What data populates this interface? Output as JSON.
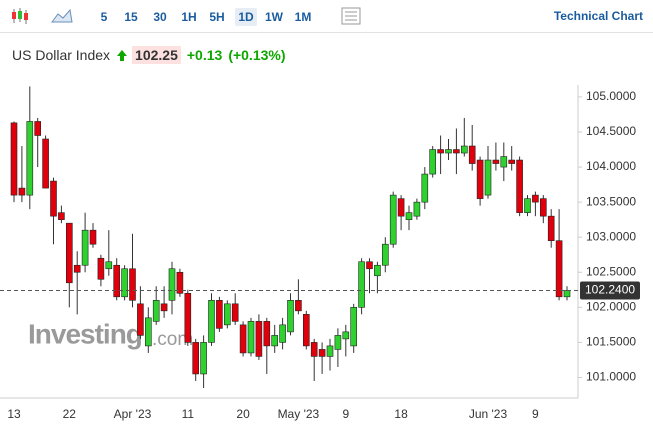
{
  "toolbar": {
    "intervals": [
      "5",
      "15",
      "30",
      "1H",
      "5H",
      "1D",
      "1W",
      "1M"
    ],
    "active_interval": "1D",
    "link": "Technical Chart"
  },
  "quote": {
    "name": "US Dollar Index",
    "price": "102.25",
    "change": "+0.13",
    "change_percent": "(+0.13%)"
  },
  "chart_data": {
    "type": "candlestick",
    "watermark": "Investing",
    "watermark_suffix": ".com",
    "categories": [
      "13",
      null,
      null,
      null,
      null,
      null,
      null,
      "22",
      null,
      null,
      null,
      null,
      null,
      null,
      null,
      "Apr '23",
      null,
      null,
      null,
      null,
      null,
      null,
      "11",
      null,
      null,
      null,
      null,
      null,
      null,
      "20",
      null,
      null,
      null,
      null,
      null,
      null,
      "May '23",
      null,
      null,
      null,
      null,
      null,
      "9",
      null,
      null,
      null,
      null,
      null,
      null,
      "18",
      null,
      null,
      null,
      null,
      null,
      null,
      null,
      null,
      null,
      null,
      "Jun '23",
      null,
      null,
      null,
      null,
      null,
      "9",
      null,
      null,
      null,
      null
    ],
    "open": [
      104.63,
      103.7,
      103.6,
      104.65,
      104.4,
      103.8,
      103.35,
      103.2,
      102.6,
      102.6,
      103.1,
      102.7,
      102.55,
      102.6,
      102.15,
      102.55,
      102.05,
      101.45,
      101.8,
      102.05,
      102.1,
      102.5,
      102.2,
      101.5,
      101.05,
      101.5,
      102.1,
      101.75,
      102.05,
      101.75,
      101.35,
      101.8,
      101.8,
      101.45,
      101.5,
      101.65,
      102.1,
      101.9,
      101.5,
      101.4,
      101.3,
      101.4,
      101.55,
      101.45,
      102.0,
      102.65,
      102.45,
      102.6,
      102.9,
      103.55,
      103.25,
      103.3,
      103.5,
      103.9,
      104.25,
      104.2,
      104.25,
      104.2,
      104.3,
      104.1,
      103.6,
      104.1,
      104.0,
      104.1,
      104.1,
      103.35,
      103.6,
      103.55,
      103.3,
      102.95,
      102.15
    ],
    "high": [
      104.65,
      104.3,
      105.15,
      104.7,
      104.45,
      103.85,
      103.45,
      103.2,
      102.8,
      103.35,
      103.2,
      102.75,
      103.1,
      102.7,
      102.6,
      103.05,
      102.3,
      102.0,
      102.3,
      102.3,
      102.65,
      102.55,
      102.25,
      101.55,
      101.6,
      102.2,
      102.15,
      102.1,
      102.2,
      101.8,
      101.85,
      101.9,
      101.85,
      101.75,
      101.85,
      102.2,
      102.4,
      101.95,
      101.55,
      101.5,
      101.55,
      101.7,
      101.75,
      102.05,
      102.7,
      102.7,
      102.65,
      103.0,
      103.65,
      103.6,
      103.45,
      103.55,
      104.0,
      104.3,
      104.45,
      104.4,
      104.55,
      104.7,
      104.6,
      104.15,
      104.3,
      104.35,
      104.35,
      104.3,
      104.15,
      103.6,
      103.65,
      103.6,
      103.4,
      103.4,
      102.3
    ],
    "low": [
      103.5,
      103.5,
      103.4,
      104.0,
      103.7,
      102.9,
      103.2,
      102.0,
      101.9,
      102.5,
      102.85,
      102.3,
      102.45,
      102.1,
      102.1,
      102.0,
      101.55,
      101.35,
      101.75,
      101.85,
      101.9,
      102.15,
      101.45,
      100.95,
      100.85,
      101.45,
      101.65,
      101.7,
      101.75,
      101.3,
      101.3,
      101.25,
      101.05,
      101.35,
      101.4,
      101.6,
      101.9,
      101.4,
      100.95,
      101.05,
      101.1,
      101.15,
      101.3,
      101.35,
      101.9,
      102.2,
      102.2,
      102.5,
      102.85,
      103.1,
      103.1,
      103.25,
      103.4,
      103.85,
      103.9,
      104.1,
      103.9,
      104.15,
      103.95,
      103.45,
      103.55,
      103.95,
      103.8,
      103.95,
      103.3,
      103.3,
      103.3,
      103.2,
      102.85,
      102.1,
      102.1
    ],
    "close": [
      103.6,
      103.6,
      104.65,
      104.45,
      103.7,
      103.3,
      103.25,
      102.35,
      102.5,
      103.1,
      102.9,
      102.4,
      102.65,
      102.15,
      102.55,
      102.1,
      101.6,
      101.85,
      102.1,
      101.95,
      102.55,
      102.2,
      101.5,
      101.05,
      101.5,
      102.1,
      101.7,
      102.05,
      101.8,
      101.35,
      101.8,
      101.3,
      101.45,
      101.6,
      101.75,
      102.1,
      101.95,
      101.45,
      101.3,
      101.3,
      101.45,
      101.6,
      101.65,
      102.0,
      102.65,
      102.55,
      102.6,
      102.9,
      103.6,
      103.3,
      103.35,
      103.5,
      103.9,
      104.25,
      104.2,
      104.25,
      104.2,
      104.3,
      104.05,
      103.55,
      104.1,
      104.05,
      104.15,
      104.05,
      103.35,
      103.55,
      103.5,
      103.3,
      102.95,
      102.15,
      102.24
    ],
    "up_color": "#2fd12f",
    "down_color": "#e0000c",
    "last_price": {
      "value": 102.24,
      "label": "102.2400"
    },
    "ylim": [
      100.75,
      105.17
    ],
    "yticks": [
      {
        "value": 101,
        "label": "101.0000"
      },
      {
        "value": 101.5,
        "label": "101.5000"
      },
      {
        "value": 102,
        "label": "102.0000"
      },
      {
        "value": 102.5,
        "label": "102.5000"
      },
      {
        "value": 103,
        "label": "103.0000"
      },
      {
        "value": 103.5,
        "label": "103.5000"
      },
      {
        "value": 104,
        "label": "104.0000"
      },
      {
        "value": 104.5,
        "label": "104.5000"
      },
      {
        "value": 105,
        "label": "105.0000"
      }
    ]
  }
}
